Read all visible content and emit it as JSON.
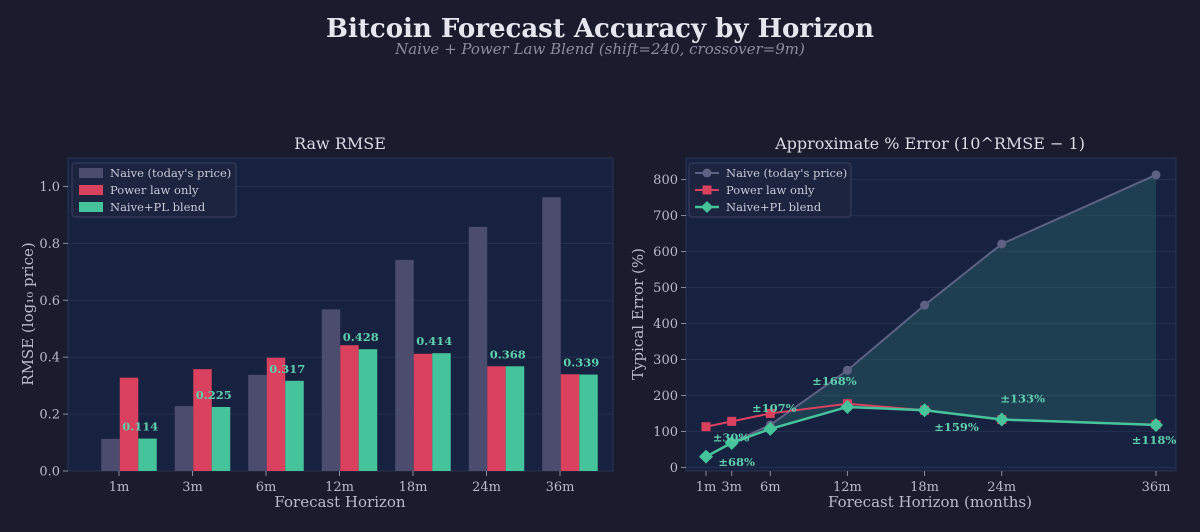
{
  "title": "Bitcoin Forecast Accuracy by Horizon",
  "subtitle": "Naive + Power Law Blend  (shift=240, crossover=9m)",
  "colors": {
    "background": "#1a1b2c",
    "panel": "#172240",
    "naive": "#4b4c6e",
    "naive_line": "#5f6184",
    "power_law": "#d9415e",
    "blend": "#45c39a",
    "text": "#c9c9d6",
    "label": "#5fd0ad"
  },
  "chart_data": [
    {
      "type": "bar",
      "title": "Raw RMSE",
      "xlabel": "Forecast Horizon",
      "ylabel": "RMSE (log₁₀ price)",
      "ylim": [
        0,
        1.1
      ],
      "yticks": [
        "0.0",
        "0.2",
        "0.4",
        "0.6",
        "0.8",
        "1.0"
      ],
      "grid": true,
      "legend": "top-left",
      "categories": [
        "1m",
        "3m",
        "6m",
        "12m",
        "18m",
        "24m",
        "36m"
      ],
      "series": [
        {
          "name": "Naive (today's price)",
          "values": [
            0.113,
            0.228,
            0.338,
            0.568,
            0.742,
            0.858,
            0.962
          ]
        },
        {
          "name": "Power law only",
          "values": [
            0.328,
            0.358,
            0.398,
            0.442,
            0.412,
            0.368,
            0.34
          ]
        },
        {
          "name": "Naive+PL blend",
          "values": [
            0.114,
            0.225,
            0.317,
            0.428,
            0.414,
            0.368,
            0.339
          ]
        }
      ],
      "value_labels": [
        "0.114",
        "0.225",
        "0.317",
        "0.428",
        "0.414",
        "0.368",
        "0.339"
      ]
    },
    {
      "type": "line",
      "title": "Approximate % Error  (10^RMSE − 1)",
      "xlabel": "Forecast Horizon (months)",
      "ylabel": "Typical Error (%)",
      "ylim": [
        0,
        860
      ],
      "yticks": [
        "0",
        "100",
        "200",
        "300",
        "400",
        "500",
        "600",
        "700",
        "800"
      ],
      "grid": true,
      "legend": "top-left",
      "x": [
        1,
        3,
        6,
        12,
        18,
        24,
        36
      ],
      "xticklabels": [
        "1m",
        "3m",
        "6m",
        "12m",
        "18m",
        "24m",
        "36m"
      ],
      "series": [
        {
          "name": "Naive (today's price)",
          "values": [
            30,
            69,
            118,
            270,
            451,
            621,
            813
          ]
        },
        {
          "name": "Power law only",
          "values": [
            113,
            128,
            150,
            177,
            159,
            133,
            119
          ]
        },
        {
          "name": "Naive+PL blend",
          "values": [
            30,
            68,
            107,
            168,
            159,
            133,
            118
          ]
        }
      ],
      "annotations": [
        "±30%",
        "±68%",
        "±107%",
        "±168%",
        "±159%",
        "±133%",
        "±118%"
      ]
    }
  ]
}
